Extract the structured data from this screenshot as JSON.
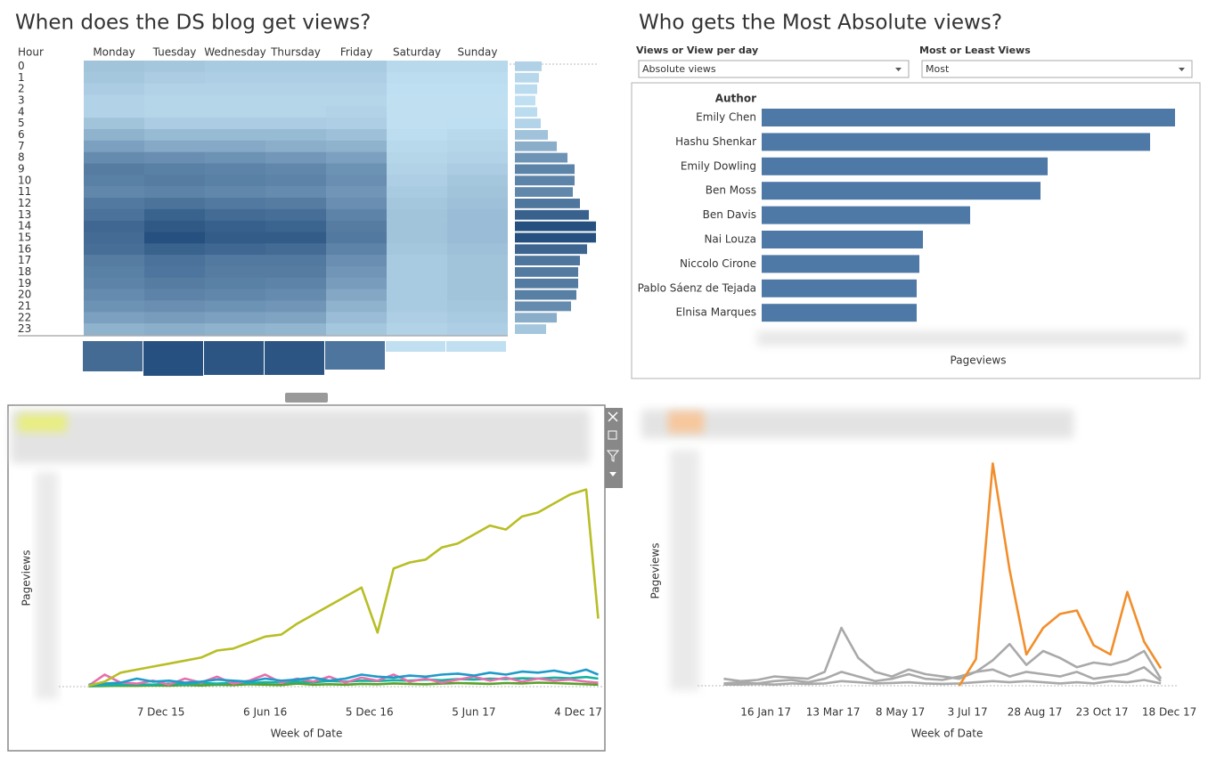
{
  "chart_data": [
    {
      "type": "heatmap",
      "title": "When does the DS blog get views?",
      "y_label": "Hour",
      "x": [
        "Monday",
        "Tuesday",
        "Wednesday",
        "Thursday",
        "Friday",
        "Saturday",
        "Sunday"
      ],
      "y": [
        "0",
        "1",
        "2",
        "3",
        "4",
        "5",
        "6",
        "7",
        "8",
        "9",
        "10",
        "11",
        "12",
        "13",
        "14",
        "15",
        "16",
        "17",
        "18",
        "19",
        "20",
        "21",
        "22",
        "23"
      ],
      "colors": [
        "#c0e0f2",
        "#26507f"
      ],
      "values": [
        [
          30,
          28,
          26,
          26,
          26,
          18,
          18
        ],
        [
          28,
          25,
          24,
          24,
          24,
          16,
          16
        ],
        [
          25,
          22,
          22,
          22,
          22,
          15,
          15
        ],
        [
          22,
          20,
          20,
          20,
          20,
          14,
          14
        ],
        [
          22,
          20,
          20,
          20,
          22,
          14,
          14
        ],
        [
          30,
          25,
          25,
          25,
          24,
          14,
          15
        ],
        [
          40,
          35,
          35,
          35,
          32,
          16,
          18
        ],
        [
          50,
          45,
          45,
          42,
          40,
          18,
          20
        ],
        [
          62,
          60,
          58,
          55,
          50,
          20,
          22
        ],
        [
          70,
          68,
          66,
          64,
          58,
          22,
          25
        ],
        [
          68,
          70,
          68,
          66,
          60,
          24,
          28
        ],
        [
          64,
          66,
          64,
          62,
          56,
          26,
          30
        ],
        [
          72,
          75,
          72,
          70,
          60,
          28,
          32
        ],
        [
          76,
          85,
          80,
          78,
          66,
          30,
          34
        ],
        [
          82,
          90,
          86,
          84,
          70,
          30,
          34
        ],
        [
          80,
          95,
          88,
          88,
          72,
          30,
          34
        ],
        [
          78,
          85,
          82,
          80,
          66,
          28,
          32
        ],
        [
          70,
          76,
          72,
          72,
          60,
          26,
          30
        ],
        [
          68,
          74,
          70,
          70,
          56,
          26,
          30
        ],
        [
          66,
          70,
          68,
          66,
          52,
          26,
          30
        ],
        [
          62,
          66,
          64,
          62,
          46,
          26,
          30
        ],
        [
          58,
          60,
          58,
          56,
          40,
          26,
          28
        ],
        [
          50,
          52,
          50,
          48,
          34,
          24,
          26
        ],
        [
          40,
          42,
          40,
          38,
          28,
          22,
          24
        ]
      ]
    },
    {
      "type": "bar",
      "orientation": "horizontal",
      "colors": [
        "#c0e0f2",
        "#26507f"
      ],
      "values": [
        30,
        27,
        25,
        23,
        25,
        29,
        37,
        47,
        59,
        67,
        67,
        65,
        73,
        83,
        91,
        91,
        81,
        73,
        71,
        71,
        69,
        63,
        47,
        35
      ]
    },
    {
      "type": "bar",
      "orientation": "vertical",
      "colors": [
        "#c0e0f2",
        "#26507f"
      ],
      "values": [
        34,
        39,
        38,
        38,
        32,
        12,
        12
      ]
    },
    {
      "type": "bar",
      "orientation": "horizontal",
      "title": "Who gets the Most Absolute views?",
      "controls": [
        {
          "label": "Views or View per day",
          "value": "Absolute views"
        },
        {
          "label": "Most or Least Views",
          "value": "Most"
        }
      ],
      "y_label": "Author",
      "x_label": "Pageviews",
      "color": "#4e79a7",
      "xlim": [
        0,
        480
      ],
      "categories": [
        "Emily Chen",
        "Hashu Shenkar",
        "Emily Dowling",
        "Ben Moss",
        "Ben Davis",
        "Nai Louza",
        "Niccolo Cirone",
        "Pablo Sáenz de Tejada",
        "Elnisa Marques"
      ],
      "values": [
        464,
        436,
        321,
        313,
        234,
        181,
        177,
        174,
        174
      ]
    },
    {
      "type": "line",
      "x_label": "Week of Date",
      "y_label": "Pageviews",
      "ylim": [
        0,
        1050
      ],
      "xlim": [
        "2015-07-13",
        "2018-01-15"
      ],
      "xticks": [
        {
          "value": "2015-12-07",
          "label": "7 Dec 15"
        },
        {
          "value": "2016-06-06",
          "label": "6 Jun 16"
        },
        {
          "value": "2016-12-05",
          "label": "5 Dec 16"
        },
        {
          "value": "2017-06-05",
          "label": "5 Jun 17"
        },
        {
          "value": "2017-12-04",
          "label": "4 Dec 17"
        }
      ],
      "x": [
        "2015-08-03",
        "2015-08-31",
        "2015-09-28",
        "2015-10-26",
        "2015-11-23",
        "2015-12-21",
        "2016-01-18",
        "2016-02-15",
        "2016-03-14",
        "2016-04-11",
        "2016-05-09",
        "2016-06-06",
        "2016-07-04",
        "2016-08-01",
        "2016-08-29",
        "2016-09-26",
        "2016-10-24",
        "2016-11-21",
        "2016-12-19",
        "2017-01-16",
        "2017-02-13",
        "2017-03-13",
        "2017-04-10",
        "2017-05-08",
        "2017-06-05",
        "2017-07-03",
        "2017-07-31",
        "2017-08-28",
        "2017-09-25",
        "2017-10-23",
        "2017-11-20",
        "2017-12-18",
        "2018-01-08"
      ],
      "series": [
        {
          "color": "#5aa02c",
          "values": [
            2,
            3,
            5,
            4,
            6,
            5,
            8,
            6,
            10,
            8,
            12,
            10,
            8,
            15,
            10,
            12,
            10,
            14,
            12,
            16,
            14,
            12,
            15,
            18,
            16,
            14,
            18,
            16,
            20,
            18,
            15,
            12,
            10
          ]
        },
        {
          "color": "#17b3a0",
          "values": [
            5,
            8,
            10,
            12,
            10,
            15,
            12,
            18,
            15,
            20,
            18,
            22,
            20,
            25,
            22,
            28,
            25,
            30,
            28,
            32,
            30,
            35,
            32,
            38,
            35,
            40,
            38,
            42,
            40,
            45,
            42,
            48,
            40
          ]
        },
        {
          "color": "#e76fad",
          "values": [
            5,
            60,
            20,
            15,
            30,
            10,
            40,
            20,
            50,
            15,
            30,
            60,
            20,
            40,
            25,
            50,
            20,
            45,
            30,
            60,
            25,
            40,
            20,
            35,
            50,
            30,
            45,
            25,
            40,
            30,
            35,
            25,
            20
          ]
        },
        {
          "color": "#1f9bc9",
          "values": [
            10,
            15,
            20,
            40,
            25,
            30,
            20,
            25,
            35,
            30,
            25,
            40,
            30,
            35,
            45,
            30,
            40,
            60,
            50,
            45,
            55,
            50,
            60,
            65,
            55,
            70,
            60,
            75,
            70,
            80,
            65,
            85,
            60
          ]
        },
        {
          "color": "#b8be24",
          "values": [
            5,
            25,
            70,
            85,
            100,
            115,
            130,
            145,
            180,
            190,
            220,
            250,
            260,
            315,
            360,
            405,
            450,
            495,
            270,
            590,
            620,
            635,
            695,
            715,
            760,
            805,
            785,
            850,
            870,
            915,
            960,
            985,
            340
          ]
        }
      ]
    },
    {
      "type": "line",
      "x_label": "Week of Date",
      "y_label": "Pageviews",
      "ylim": [
        0,
        1000
      ],
      "xlim": [
        "2016-12-05",
        "2017-12-25"
      ],
      "xticks": [
        {
          "value": "2017-01-16",
          "label": "16 Jan 17"
        },
        {
          "value": "2017-03-13",
          "label": "13 Mar 17"
        },
        {
          "value": "2017-05-08",
          "label": "8 May 17"
        },
        {
          "value": "2017-07-03",
          "label": "3 Jul 17"
        },
        {
          "value": "2017-08-28",
          "label": "28 Aug 17"
        },
        {
          "value": "2017-10-23",
          "label": "23 Oct 17"
        },
        {
          "value": "2017-12-18",
          "label": "18 Dec 17"
        }
      ],
      "x": [
        "2016-12-12",
        "2016-12-26",
        "2017-01-09",
        "2017-01-23",
        "2017-02-06",
        "2017-02-20",
        "2017-03-06",
        "2017-03-20",
        "2017-04-03",
        "2017-04-17",
        "2017-05-01",
        "2017-05-15",
        "2017-05-29",
        "2017-06-12",
        "2017-06-26",
        "2017-07-10",
        "2017-07-24",
        "2017-08-07",
        "2017-08-21",
        "2017-09-04",
        "2017-09-18",
        "2017-10-02",
        "2017-10-16",
        "2017-10-30",
        "2017-11-13",
        "2017-11-27",
        "2017-12-11"
      ],
      "series": [
        {
          "color": "#a9a9a9",
          "values": [
            5,
            5,
            8,
            5,
            10,
            8,
            10,
            20,
            15,
            10,
            12,
            15,
            10,
            8,
            10,
            15,
            20,
            15,
            20,
            15,
            10,
            15,
            10,
            20,
            15,
            25,
            10
          ]
        },
        {
          "color": "#a9a9a9",
          "values": [
            10,
            15,
            10,
            20,
            25,
            15,
            30,
            60,
            40,
            20,
            30,
            50,
            30,
            25,
            40,
            60,
            70,
            40,
            60,
            50,
            40,
            60,
            30,
            40,
            50,
            80,
            20
          ]
        },
        {
          "color": "#a9a9a9",
          "values": [
            30,
            20,
            25,
            40,
            35,
            30,
            60,
            250,
            120,
            60,
            40,
            70,
            50,
            40,
            30,
            60,
            110,
            180,
            90,
            150,
            120,
            80,
            100,
            90,
            110,
            150,
            30
          ]
        },
        {
          "color": "#f28e2b",
          "values": [
            null,
            null,
            null,
            null,
            null,
            null,
            null,
            null,
            null,
            null,
            null,
            null,
            null,
            null,
            0,
            115,
            960,
            500,
            135,
            250,
            310,
            325,
            175,
            135,
            405,
            190,
            75
          ]
        }
      ]
    }
  ]
}
